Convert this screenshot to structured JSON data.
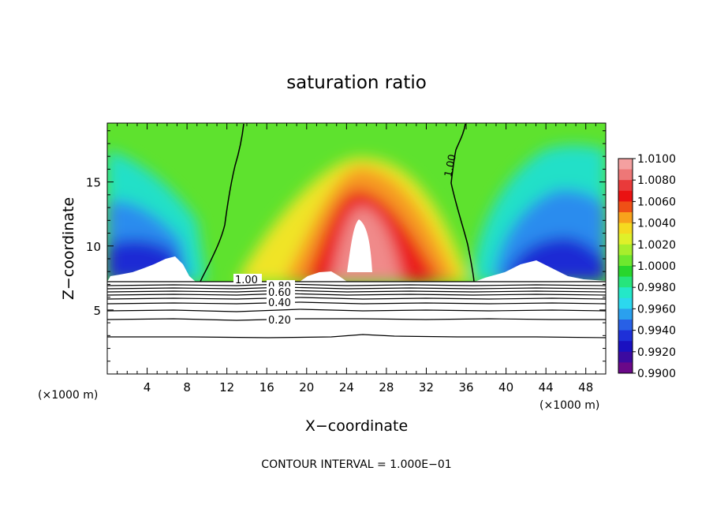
{
  "chart_data": {
    "type": "heatmap",
    "title": "saturation ratio",
    "xlabel": "X−coordinate",
    "ylabel": "Z−coordinate",
    "x_unit_left": "(×1000 m)",
    "x_unit_right": "(×1000 m)",
    "xlim": [
      0,
      50
    ],
    "ylim": [
      0,
      19.6
    ],
    "x_ticks": [
      4,
      8,
      12,
      16,
      20,
      24,
      28,
      32,
      36,
      40,
      44,
      48
    ],
    "y_ticks": [
      5,
      10,
      15
    ],
    "footer": "CONTOUR INTERVAL = 1.000E−01",
    "colorbar": {
      "min": 0.99,
      "max": 1.01,
      "labels": [
        "1.0100",
        "1.0080",
        "1.0060",
        "1.0040",
        "1.0020",
        "1.0000",
        "0.9980",
        "0.9960",
        "0.9940",
        "0.9920",
        "0.9900"
      ],
      "colors": [
        "#f4a0a0",
        "#ee7777",
        "#e93a3a",
        "#ea1212",
        "#ef5016",
        "#f8a21c",
        "#f5da20",
        "#dff02a",
        "#a8ee2c",
        "#6ee82e",
        "#28d62c",
        "#26e57c",
        "#24e8c8",
        "#2cd8ee",
        "#2aa0ee",
        "#2860e6",
        "#1e30d8",
        "#1a10c0",
        "#3c0aa0",
        "#6a0888"
      ]
    },
    "surface_contours": [
      {
        "label": "1.00",
        "z": 7.2
      },
      {
        "label": "0.80",
        "z": 6.7
      },
      {
        "label": "0.60",
        "z": 6.2
      },
      {
        "label": "0.40",
        "z": 5.6
      },
      {
        "label": "0.20",
        "z": 4.5
      },
      {
        "label": "",
        "z": 3.0
      }
    ],
    "contour_labels_upper": [
      {
        "label": "1.00",
        "x": 35.0,
        "z": 17.0
      }
    ]
  }
}
